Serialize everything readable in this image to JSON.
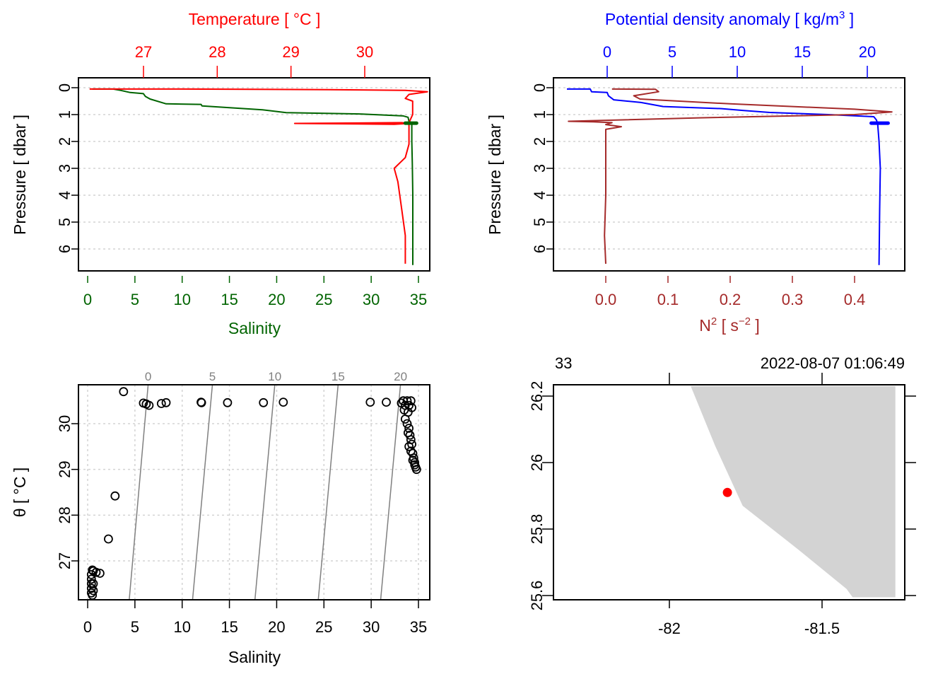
{
  "colors": {
    "temperature": "#ff0000",
    "salinity": "#006400",
    "density": "#0000ff",
    "n2": "#a52a2a",
    "land": "#d3d3d3",
    "station": "#ff0000",
    "isopycnal": "#808080",
    "grid": "#d3d3d3",
    "frame": "#000000"
  },
  "chart_data": [
    {
      "id": "ts_profile",
      "type": "line",
      "title": "",
      "ylabel": "Pressure [ dbar ]",
      "ylim": [
        6.9,
        -0.35
      ],
      "yticks": [
        0,
        1,
        2,
        3,
        4,
        5,
        6
      ],
      "grid": "horizontal dotted",
      "bottom_axis": {
        "label": "Salinity",
        "ticks": [
          0,
          5,
          10,
          15,
          20,
          25,
          30,
          35
        ],
        "range": [
          -1,
          36
        ]
      },
      "top_axis": {
        "label": "Temperature [ °C ]",
        "ticks": [
          27,
          28,
          29,
          30
        ],
        "range": [
          26.23,
          30.93
        ]
      },
      "series": [
        {
          "name": "Salinity",
          "axis": "bottom",
          "points": [
            [
              0.5,
              0.05
            ],
            [
              2.7,
              0.05
            ],
            [
              3.5,
              0.1
            ],
            [
              4.5,
              0.18
            ],
            [
              5.9,
              0.22
            ],
            [
              6.1,
              0.32
            ],
            [
              6.6,
              0.42
            ],
            [
              8.3,
              0.6
            ],
            [
              12,
              0.62
            ],
            [
              12.1,
              0.68
            ],
            [
              18.5,
              0.82
            ],
            [
              21,
              0.93
            ],
            [
              29,
              0.98
            ],
            [
              33.4,
              1.05
            ],
            [
              33.9,
              1.1
            ],
            [
              34.0,
              1.25
            ],
            [
              34.3,
              1.3
            ],
            [
              34.3,
              2.0
            ],
            [
              34.35,
              2.8
            ],
            [
              34.4,
              4.0
            ],
            [
              34.4,
              6.6
            ]
          ]
        },
        {
          "name": "Temperature",
          "axis": "top",
          "points": [
            [
              26.27,
              0.05
            ],
            [
              27.5,
              0.05
            ],
            [
              29.5,
              0.07
            ],
            [
              30.55,
              0.1
            ],
            [
              30.85,
              0.15
            ],
            [
              30.6,
              0.25
            ],
            [
              30.55,
              0.4
            ],
            [
              30.65,
              0.5
            ],
            [
              30.65,
              1.0
            ],
            [
              30.6,
              1.3
            ],
            [
              30.6,
              2.1
            ],
            [
              30.55,
              2.6
            ],
            [
              30.4,
              3.0
            ],
            [
              30.45,
              3.5
            ],
            [
              30.5,
              4.5
            ],
            [
              30.55,
              5.5
            ],
            [
              30.55,
              6.55
            ]
          ]
        },
        {
          "name": "Temperature (spike)",
          "axis": "top",
          "points": [
            [
              29.05,
              1.33
            ],
            [
              30.5,
              1.3
            ],
            [
              30.6,
              1.33
            ],
            [
              30.4,
              1.36
            ],
            [
              29.05,
              1.33
            ]
          ]
        }
      ]
    },
    {
      "id": "density_n2_profile",
      "type": "line",
      "ylabel": "Pressure [ dbar ]",
      "ylim": [
        6.9,
        -0.35
      ],
      "yticks": [
        0,
        1,
        2,
        3,
        4,
        5,
        6
      ],
      "grid": "horizontal dotted",
      "bottom_axis": {
        "label": "N² [ s⁻² ]",
        "ticks": [
          "0.0",
          "0.1",
          "0.2",
          "0.3",
          "0.4"
        ],
        "range": [
          -0.084,
          0.48
        ]
      },
      "top_axis": {
        "label": "Potential density anomaly [ kg/m³ ]",
        "ticks": [
          0,
          5,
          10,
          15,
          20
        ],
        "range": [
          -4.1,
          22.9
        ]
      },
      "series": [
        {
          "name": "Potential density anomaly",
          "axis": "top",
          "points": [
            [
              -3.1,
              0.05
            ],
            [
              -1.3,
              0.05
            ],
            [
              -1.2,
              0.15
            ],
            [
              0,
              0.18
            ],
            [
              0.1,
              0.3
            ],
            [
              0.5,
              0.45
            ],
            [
              2.6,
              0.55
            ],
            [
              4.3,
              0.7
            ],
            [
              8.8,
              0.78
            ],
            [
              10.5,
              0.85
            ],
            [
              12.5,
              0.92
            ],
            [
              17,
              1.0
            ],
            [
              20.5,
              1.08
            ],
            [
              20.7,
              1.2
            ],
            [
              20.8,
              1.35
            ],
            [
              20.9,
              2.0
            ],
            [
              21,
              3.0
            ],
            [
              20.95,
              4.5
            ],
            [
              20.9,
              6.6
            ]
          ]
        },
        {
          "name": "N2",
          "axis": "bottom",
          "points": [
            [
              0.01,
              0.05
            ],
            [
              0.08,
              0.06
            ],
            [
              0.085,
              0.15
            ],
            [
              0.045,
              0.3
            ],
            [
              0.055,
              0.42
            ],
            [
              0.2,
              0.6
            ],
            [
              0.4,
              0.8
            ],
            [
              0.46,
              0.9
            ],
            [
              0.4,
              1.0
            ],
            [
              0.15,
              1.12
            ],
            [
              -0.06,
              1.25
            ],
            [
              -0.02,
              1.27
            ],
            [
              0.01,
              1.3
            ],
            [
              0.0,
              1.37
            ],
            [
              0.025,
              1.45
            ],
            [
              0.0,
              1.55
            ],
            [
              0.0,
              2.5
            ],
            [
              0.0,
              4.0
            ],
            [
              -0.002,
              5.5
            ],
            [
              0.0,
              6.55
            ]
          ]
        }
      ]
    },
    {
      "id": "ts_diagram",
      "type": "scatter",
      "xlabel": "Salinity",
      "ylabel": "θ [ °C ]",
      "xlim": [
        -1,
        36
      ],
      "ylim": [
        26.15,
        30.85
      ],
      "xticks": [
        0,
        5,
        10,
        15,
        20,
        25,
        30,
        35
      ],
      "yticks": [
        27,
        28,
        29,
        30
      ],
      "grid": "both dotted",
      "isopycnals": {
        "labels": [
          0,
          5,
          10,
          15,
          20
        ],
        "bottom_salinity": [
          4.4,
          11.1,
          17.7,
          24.4,
          31.0
        ],
        "top_salinity": [
          6.4,
          13.2,
          19.8,
          26.5,
          33.1
        ]
      },
      "points": [
        [
          3.8,
          30.7
        ],
        [
          5.9,
          30.45
        ],
        [
          6.2,
          30.43
        ],
        [
          6.5,
          30.4
        ],
        [
          7.8,
          30.44
        ],
        [
          8.3,
          30.46
        ],
        [
          12,
          30.47
        ],
        [
          12.05,
          30.46
        ],
        [
          14.8,
          30.46
        ],
        [
          18.6,
          30.46
        ],
        [
          20.7,
          30.47
        ],
        [
          29.9,
          30.47
        ],
        [
          31.6,
          30.47
        ],
        [
          2.9,
          28.42
        ],
        [
          2.2,
          27.48
        ],
        [
          1.3,
          26.73
        ],
        [
          0.9,
          26.75
        ],
        [
          0.5,
          26.8
        ],
        [
          0.4,
          26.7
        ],
        [
          0.4,
          26.6
        ],
        [
          0.4,
          26.5
        ],
        [
          0.4,
          26.4
        ],
        [
          0.4,
          26.3
        ],
        [
          0.5,
          26.25
        ],
        [
          0.6,
          26.78
        ],
        [
          0.6,
          26.5
        ],
        [
          0.6,
          26.35
        ],
        [
          33.4,
          30.5
        ],
        [
          33.8,
          30.5
        ],
        [
          34.2,
          30.5
        ],
        [
          33.2,
          30.45
        ],
        [
          33.6,
          30.4
        ],
        [
          34.0,
          30.4
        ],
        [
          34.3,
          30.35
        ],
        [
          33.5,
          30.3
        ],
        [
          33.9,
          30.25
        ],
        [
          33.6,
          30.1
        ],
        [
          33.8,
          30.0
        ],
        [
          34.0,
          29.9
        ],
        [
          33.9,
          29.8
        ],
        [
          34.1,
          29.75
        ],
        [
          34.2,
          29.65
        ],
        [
          34.3,
          29.55
        ],
        [
          34.0,
          29.5
        ],
        [
          34.2,
          29.4
        ],
        [
          34.4,
          29.35
        ],
        [
          34.5,
          29.25
        ],
        [
          34.4,
          29.2
        ],
        [
          34.6,
          29.15
        ],
        [
          34.6,
          29.1
        ],
        [
          34.7,
          29.05
        ],
        [
          34.8,
          29.0
        ]
      ]
    },
    {
      "id": "station_map",
      "type": "map",
      "xlim": [
        -82.38,
        -81.26
      ],
      "ylim": [
        25.595,
        26.23
      ],
      "xticks": [
        "-82",
        "-81.5"
      ],
      "yticks": [
        "25.6",
        "25.8",
        "26",
        "26.2"
      ],
      "top_left_label": "33",
      "top_right_label": "2022-08-07 01:06:49",
      "station": {
        "lon": -81.81,
        "lat": 25.91
      },
      "coastline": [
        [
          -81.93,
          26.23
        ],
        [
          -81.85,
          26.05
        ],
        [
          -81.76,
          25.87
        ],
        [
          -81.58,
          25.74
        ],
        [
          -81.42,
          25.62
        ],
        [
          -81.4,
          25.595
        ],
        [
          -81.26,
          25.595
        ],
        [
          -81.26,
          26.23
        ]
      ]
    }
  ]
}
